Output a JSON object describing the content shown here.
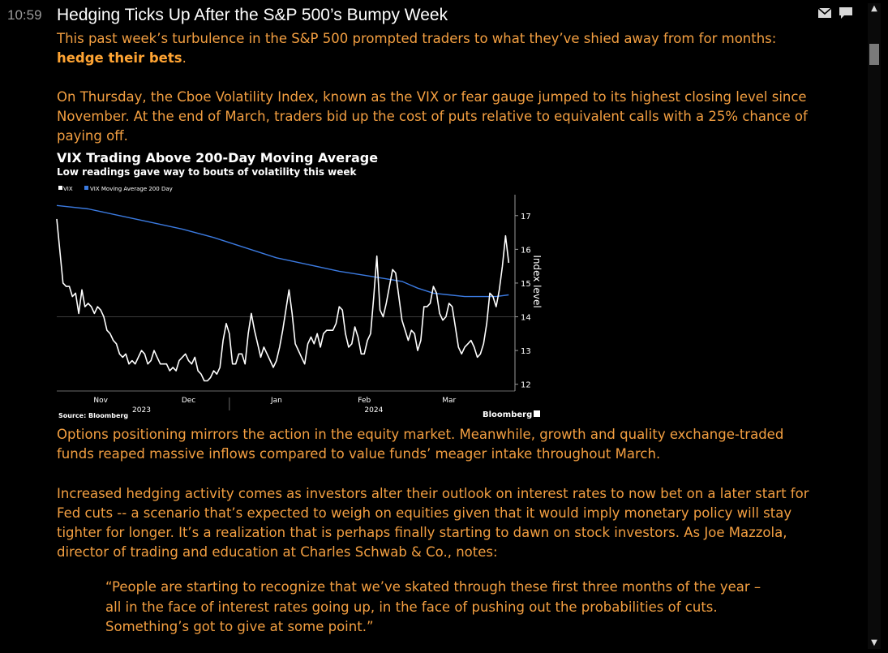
{
  "header": {
    "time": "10:59",
    "headline": "Hedging Ticks Up After the S&P 500’s Bumpy Week",
    "icons": [
      "mail-icon",
      "comment-icon"
    ]
  },
  "paragraphs": {
    "p1_before": "This past week’s turbulence in the S&P 500 prompted traders to what they’ve shied away from for months: ",
    "p1_bold": "hedge their bets",
    "p1_after": ".",
    "p2": "On Thursday, the Cboe Volatility Index, known as the VIX or fear gauge jumped to its highest closing level since November. At the end of March, traders bid up the cost of puts relative to equivalent calls with a 25% chance of paying off.",
    "p3": "Options positioning mirrors the action in the equity market. Meanwhile, growth and quality exchange-traded funds reaped massive inflows compared to value funds’ meager intake throughout March.",
    "p4": "Increased hedging activity comes as investors alter their outlook on interest rates to now bet on a later start for Fed cuts -- a scenario that’s expected to weigh on equities given that it would imply monetary policy will stay tighter for longer. It’s a realization that is perhaps finally starting to dawn on stock investors. As Joe Mazzola, director of trading and education at Charles Schwab & Co., notes:",
    "quote": "“People are starting to recognize that we’ve skated through these first three months of the year – all in the face of interest rates going up, in the face of pushing out the probabilities of cuts. Something’s got to give at some point.”"
  },
  "chart_data": {
    "type": "line",
    "title": "VIX Trading Above 200-Day Moving Average",
    "subtitle": "Low readings gave way to bouts of volatility this week",
    "ylabel": "Index level",
    "ylim": [
      11.8,
      17.5
    ],
    "yticks": [
      12,
      13,
      14,
      15,
      16,
      17
    ],
    "xlim": [
      0,
      146
    ],
    "xticks": [
      {
        "x": 14,
        "label": "Nov"
      },
      {
        "x": 42,
        "label": "Dec"
      },
      {
        "x": 70,
        "label": "Jan"
      },
      {
        "x": 98,
        "label": "Feb"
      },
      {
        "x": 125,
        "label": "Mar"
      }
    ],
    "xyears": [
      {
        "x": 27,
        "label": "2023"
      },
      {
        "x": 101,
        "label": "2024"
      }
    ],
    "year_divider_x": 55,
    "source": "Source: Bloomberg",
    "brand": "Bloomberg",
    "series": [
      {
        "name": "VIX",
        "color": "#ffffff",
        "points": [
          [
            0,
            16.9
          ],
          [
            2,
            15.0
          ],
          [
            3,
            14.9
          ],
          [
            4,
            14.9
          ],
          [
            5,
            14.6
          ],
          [
            6,
            14.7
          ],
          [
            7,
            14.1
          ],
          [
            8,
            14.8
          ],
          [
            9,
            14.3
          ],
          [
            10,
            14.4
          ],
          [
            11,
            14.3
          ],
          [
            12,
            14.1
          ],
          [
            13,
            14.3
          ],
          [
            14,
            14.2
          ],
          [
            15,
            14.0
          ],
          [
            16,
            13.6
          ],
          [
            17,
            13.5
          ],
          [
            18,
            13.3
          ],
          [
            19,
            13.2
          ],
          [
            20,
            12.9
          ],
          [
            21,
            12.8
          ],
          [
            22,
            12.9
          ],
          [
            23,
            12.6
          ],
          [
            24,
            12.7
          ],
          [
            25,
            12.6
          ],
          [
            26,
            12.8
          ],
          [
            27,
            13.0
          ],
          [
            28,
            12.9
          ],
          [
            29,
            12.6
          ],
          [
            30,
            12.7
          ],
          [
            31,
            13.0
          ],
          [
            32,
            12.8
          ],
          [
            33,
            12.6
          ],
          [
            34,
            12.6
          ],
          [
            35,
            12.6
          ],
          [
            36,
            12.4
          ],
          [
            37,
            12.5
          ],
          [
            38,
            12.4
          ],
          [
            39,
            12.7
          ],
          [
            40,
            12.8
          ],
          [
            41,
            12.9
          ],
          [
            42,
            12.7
          ],
          [
            43,
            12.6
          ],
          [
            44,
            12.8
          ],
          [
            45,
            12.4
          ],
          [
            46,
            12.3
          ],
          [
            47,
            12.1
          ],
          [
            48,
            12.1
          ],
          [
            49,
            12.2
          ],
          [
            50,
            12.4
          ],
          [
            51,
            12.3
          ],
          [
            52,
            12.5
          ],
          [
            53,
            13.3
          ],
          [
            54,
            13.8
          ],
          [
            55,
            13.5
          ],
          [
            56,
            12.6
          ],
          [
            57,
            12.6
          ],
          [
            58,
            12.9
          ],
          [
            59,
            12.9
          ],
          [
            60,
            12.6
          ],
          [
            61,
            13.5
          ],
          [
            62,
            14.1
          ],
          [
            63,
            13.6
          ],
          [
            64,
            13.2
          ],
          [
            65,
            12.8
          ],
          [
            66,
            13.1
          ],
          [
            67,
            12.9
          ],
          [
            68,
            12.7
          ],
          [
            69,
            12.5
          ],
          [
            70,
            12.7
          ],
          [
            71,
            13.1
          ],
          [
            72,
            13.6
          ],
          [
            73,
            14.2
          ],
          [
            74,
            14.8
          ],
          [
            75,
            14.1
          ],
          [
            76,
            13.2
          ],
          [
            77,
            13.0
          ],
          [
            78,
            12.8
          ],
          [
            79,
            12.6
          ],
          [
            80,
            13.2
          ],
          [
            81,
            13.4
          ],
          [
            82,
            13.2
          ],
          [
            83,
            13.5
          ],
          [
            84,
            13.1
          ],
          [
            85,
            13.5
          ],
          [
            86,
            13.6
          ],
          [
            87,
            13.6
          ],
          [
            88,
            13.6
          ],
          [
            89,
            13.8
          ],
          [
            90,
            14.3
          ],
          [
            91,
            14.2
          ],
          [
            92,
            13.5
          ],
          [
            93,
            13.1
          ],
          [
            94,
            13.2
          ],
          [
            95,
            13.7
          ],
          [
            96,
            13.4
          ],
          [
            97,
            12.9
          ],
          [
            98,
            12.9
          ],
          [
            99,
            13.3
          ],
          [
            100,
            13.5
          ],
          [
            101,
            14.6
          ],
          [
            102,
            15.8
          ],
          [
            103,
            14.2
          ],
          [
            104,
            14.0
          ],
          [
            105,
            14.4
          ],
          [
            106,
            14.9
          ],
          [
            107,
            15.4
          ],
          [
            108,
            15.3
          ],
          [
            109,
            14.6
          ],
          [
            110,
            13.9
          ],
          [
            111,
            13.6
          ],
          [
            112,
            13.3
          ],
          [
            113,
            13.6
          ],
          [
            114,
            13.5
          ],
          [
            115,
            13.0
          ],
          [
            116,
            13.3
          ],
          [
            117,
            14.3
          ],
          [
            118,
            14.3
          ],
          [
            119,
            14.4
          ],
          [
            120,
            14.9
          ],
          [
            121,
            14.7
          ],
          [
            122,
            14.1
          ],
          [
            123,
            13.9
          ],
          [
            124,
            14.0
          ],
          [
            125,
            14.4
          ],
          [
            126,
            14.3
          ],
          [
            127,
            13.7
          ],
          [
            128,
            13.1
          ],
          [
            129,
            12.9
          ],
          [
            130,
            13.1
          ],
          [
            131,
            13.2
          ],
          [
            132,
            13.3
          ],
          [
            133,
            13.1
          ],
          [
            134,
            12.8
          ],
          [
            135,
            12.9
          ],
          [
            136,
            13.2
          ],
          [
            137,
            13.8
          ],
          [
            138,
            14.7
          ],
          [
            139,
            14.6
          ],
          [
            140,
            14.3
          ],
          [
            141,
            14.8
          ],
          [
            142,
            15.5
          ],
          [
            143,
            16.4
          ],
          [
            144,
            15.6
          ]
        ]
      },
      {
        "name": "VIX Moving Average 200 Day",
        "color": "#3b7ae0",
        "points": [
          [
            0,
            17.3
          ],
          [
            10,
            17.2
          ],
          [
            20,
            17.0
          ],
          [
            30,
            16.8
          ],
          [
            40,
            16.6
          ],
          [
            50,
            16.35
          ],
          [
            60,
            16.05
          ],
          [
            70,
            15.75
          ],
          [
            80,
            15.55
          ],
          [
            90,
            15.35
          ],
          [
            100,
            15.2
          ],
          [
            110,
            15.05
          ],
          [
            115,
            14.85
          ],
          [
            120,
            14.7
          ],
          [
            125,
            14.65
          ],
          [
            130,
            14.6
          ],
          [
            135,
            14.6
          ],
          [
            140,
            14.6
          ],
          [
            144,
            14.65
          ]
        ]
      }
    ]
  }
}
